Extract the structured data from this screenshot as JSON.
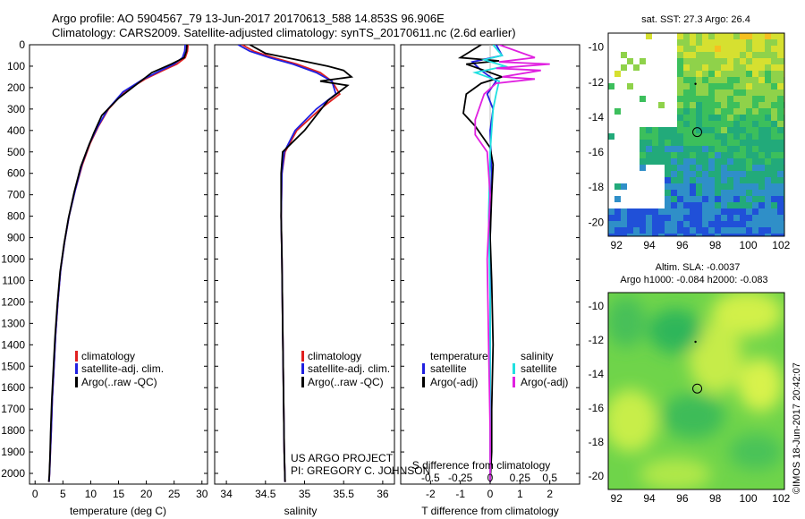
{
  "header": {
    "line1": "Argo profile: AO 5904567_79 13-Jun-2017 20170613_588 14.853S 96.906E",
    "line2": "Climatology: CARS2009. Satellite-adjusted climatology: synTS_20170611.nc (2.6d earlier)"
  },
  "credit": {
    "line1": "US ARGO PROJECT",
    "line2": "PI: GREGORY C. JOHNSON"
  },
  "timestamp": "©IMOS 18-Jun-2017 20:42:07",
  "colors": {
    "climatology": "#e02020",
    "satellite": "#2020e0",
    "argo": "#000000",
    "sat_salinity": "#20e0e0",
    "argo_salinity": "#e020e0"
  },
  "chart_data": [
    {
      "type": "line",
      "id": "temperature",
      "xlabel": "temperature (deg C)",
      "ylabel": "",
      "xlim": [
        -1,
        31
      ],
      "ylim": [
        2050,
        0
      ],
      "xticks": [
        "0",
        "5",
        "10",
        "15",
        "20",
        "25",
        "30"
      ],
      "xtick_values": [
        0,
        5,
        10,
        15,
        20,
        25,
        30
      ],
      "yticks": [
        "0",
        "100",
        "200",
        "300",
        "400",
        "500",
        "600",
        "700",
        "800",
        "900",
        "1000",
        "1100",
        "1200",
        "1300",
        "1400",
        "1500",
        "1600",
        "1700",
        "1800",
        "1900",
        "2000"
      ],
      "ytick_values": [
        0,
        100,
        200,
        300,
        400,
        500,
        600,
        700,
        800,
        900,
        1000,
        1100,
        1200,
        1300,
        1400,
        1500,
        1600,
        1700,
        1800,
        1900,
        2000
      ],
      "legend": [
        "climatology",
        "satellite-adj. clim.",
        "Argo(..raw -QC)"
      ],
      "series": [
        {
          "name": "climatology",
          "color": "#e02020",
          "x": [
            27.5,
            27.4,
            27.0,
            25.5,
            23.0,
            19.8,
            16.0,
            13.2,
            11.4,
            9.9,
            8.5,
            7.2,
            6.1,
            5.3,
            4.6,
            4.1,
            3.7,
            3.4,
            3.1,
            2.9,
            2.75,
            2.6,
            2.5
          ],
          "y": [
            0,
            30,
            60,
            90,
            120,
            160,
            220,
            300,
            380,
            460,
            560,
            680,
            800,
            920,
            1050,
            1200,
            1350,
            1500,
            1650,
            1800,
            1900,
            2000,
            2040
          ]
        },
        {
          "name": "satellite",
          "color": "#2020e0",
          "x": [
            27.0,
            26.9,
            26.5,
            25.0,
            22.6,
            19.5,
            15.8,
            13.1,
            11.3,
            9.8,
            8.4,
            7.2,
            6.1,
            5.3,
            4.6,
            4.1,
            3.7,
            3.4,
            3.1,
            2.9,
            2.75,
            2.6,
            2.5
          ],
          "y": [
            0,
            30,
            60,
            90,
            120,
            160,
            220,
            300,
            380,
            460,
            560,
            680,
            800,
            920,
            1050,
            1200,
            1350,
            1500,
            1650,
            1800,
            1900,
            2000,
            2040
          ]
        },
        {
          "name": "argo",
          "color": "#000000",
          "x": [
            27.3,
            27.2,
            26.8,
            24.5,
            21.0,
            18.5,
            15.0,
            12.0,
            10.6,
            9.5,
            8.2,
            7.0,
            6.0,
            5.2,
            4.5,
            4.0,
            3.6,
            3.3,
            3.0,
            2.8,
            2.7,
            2.55,
            2.45
          ],
          "y": [
            0,
            30,
            60,
            90,
            130,
            180,
            250,
            330,
            410,
            480,
            570,
            690,
            810,
            930,
            1060,
            1210,
            1360,
            1510,
            1660,
            1810,
            1910,
            2010,
            2040
          ]
        }
      ]
    },
    {
      "type": "line",
      "id": "salinity",
      "xlabel": "salinity",
      "xlim": [
        33.85,
        36.15
      ],
      "ylim": [
        2050,
        0
      ],
      "xticks": [
        "34",
        "34.5",
        "35",
        "35.5",
        "36"
      ],
      "xtick_values": [
        34,
        34.5,
        35,
        35.5,
        36
      ],
      "legend": [
        "climatology",
        "satellite-adj. clim.",
        "Argo(..raw -QC)"
      ],
      "series": [
        {
          "name": "climatology",
          "color": "#e02020",
          "x": [
            34.2,
            34.35,
            34.6,
            34.9,
            35.2,
            35.35,
            35.45,
            35.2,
            34.9,
            34.75,
            34.71,
            34.7,
            34.71,
            34.72,
            34.73,
            34.74,
            34.75
          ],
          "y": [
            0,
            30,
            60,
            90,
            130,
            170,
            230,
            300,
            400,
            500,
            600,
            800,
            1000,
            1300,
            1600,
            1900,
            2040
          ]
        },
        {
          "name": "satellite",
          "color": "#2020e0",
          "x": [
            34.15,
            34.3,
            34.55,
            34.85,
            35.15,
            35.35,
            35.4,
            35.15,
            34.88,
            34.74,
            34.71,
            34.7,
            34.71,
            34.72,
            34.73,
            34.74,
            34.75
          ],
          "y": [
            0,
            30,
            60,
            90,
            130,
            170,
            230,
            300,
            400,
            500,
            600,
            800,
            1000,
            1300,
            1600,
            1900,
            2040
          ]
        },
        {
          "name": "argo",
          "color": "#000000",
          "x": [
            34.3,
            34.5,
            34.9,
            35.3,
            35.5,
            35.6,
            35.2,
            35.55,
            35.3,
            35.0,
            34.72,
            34.7,
            34.7,
            34.71,
            34.72,
            34.73,
            34.74,
            34.75
          ],
          "y": [
            0,
            40,
            70,
            100,
            120,
            150,
            170,
            190,
            260,
            400,
            500,
            600,
            800,
            1000,
            1300,
            1600,
            1900,
            2040
          ]
        }
      ]
    },
    {
      "type": "line",
      "id": "difference",
      "xlabel": "T difference from climatology",
      "xlabel_top": "S difference from climatology",
      "xlim": [
        -3,
        3
      ],
      "ylim": [
        2050,
        0
      ],
      "xticks": [
        "-2",
        "-1",
        "0",
        "1",
        "2"
      ],
      "xtick_values": [
        -2,
        -1,
        0,
        1,
        2
      ],
      "sticks": [
        "-0.5",
        "-0.25",
        "0",
        "0.25",
        "0.5"
      ],
      "stick_values": [
        -2,
        -1,
        0,
        1,
        2
      ],
      "legend_temperature": [
        "temperature",
        "satellite",
        "Argo(-adj)"
      ],
      "legend_salinity": [
        "salinity",
        "satellite",
        "Argo(-adj)"
      ],
      "series": [
        {
          "name": "temp-satellite",
          "color": "#2020e0",
          "x": [
            0.2,
            0.4,
            -0.6,
            -0.3,
            0.2,
            -0.1,
            0.1,
            0,
            0.05,
            0,
            0,
            0,
            0
          ],
          "y": [
            0,
            50,
            80,
            120,
            170,
            230,
            300,
            400,
            600,
            900,
            1300,
            1700,
            2040
          ]
        },
        {
          "name": "temp-argo",
          "color": "#000000",
          "x": [
            -0.3,
            -1.0,
            0.3,
            -0.8,
            -0.2,
            0.4,
            -0.3,
            -0.8,
            -0.9,
            -0.5,
            -0.3,
            0,
            0.1,
            0.05,
            0,
            0.05,
            0.1,
            0.05,
            0.05,
            0
          ],
          "y": [
            0,
            60,
            75,
            90,
            120,
            150,
            180,
            230,
            320,
            380,
            420,
            480,
            560,
            700,
            900,
            1100,
            1400,
            1700,
            1900,
            2040
          ]
        },
        {
          "name": "sal-satellite",
          "color": "#20e0e0",
          "x": [
            0.1,
            0.4,
            -0.2,
            0.5,
            -0.5,
            0.3,
            0.2,
            0.1,
            0,
            -0.05,
            0,
            0,
            0
          ],
          "y": [
            0,
            50,
            70,
            100,
            130,
            170,
            230,
            300,
            500,
            800,
            1200,
            1600,
            2040
          ]
        },
        {
          "name": "sal-argo",
          "color": "#e020e0",
          "x": [
            0.3,
            1.5,
            0.3,
            2.0,
            0.2,
            1.7,
            0.4,
            1.5,
            0.2,
            -0.2,
            -0.5,
            -0.5,
            -0.1,
            0,
            -0.1,
            -0.05,
            0,
            0
          ],
          "y": [
            0,
            60,
            80,
            90,
            110,
            120,
            150,
            160,
            180,
            230,
            350,
            420,
            500,
            700,
            1000,
            1400,
            1800,
            2040
          ]
        }
      ]
    },
    {
      "type": "heatmap",
      "id": "sst-map",
      "title": "sat. SST: 27.3 Argo: 26.4",
      "xlim": [
        91.5,
        102.2
      ],
      "ylim": [
        -20.8,
        -9.2
      ],
      "xticks": [
        "92",
        "94",
        "96",
        "98",
        "100",
        "102"
      ],
      "xtick_values": [
        92,
        94,
        96,
        98,
        100,
        102
      ],
      "yticks": [
        "-10",
        "-12",
        "-14",
        "-16",
        "-18",
        "-20"
      ],
      "ytick_values": [
        -10,
        -12,
        -14,
        -16,
        -18,
        -20
      ],
      "profile_marker": [
        96.906,
        -14.853
      ],
      "previous_marker": [
        96.8,
        -12.1
      ]
    },
    {
      "type": "heatmap",
      "id": "sla-map",
      "title": "Altim. SLA: -0.0037",
      "subtitle": "Argo h1000: -0.084 h2000: -0.083",
      "xlim": [
        91.5,
        102.2
      ],
      "ylim": [
        -20.8,
        -9.2
      ],
      "xticks": [
        "92",
        "94",
        "96",
        "98",
        "100",
        "102"
      ],
      "xtick_values": [
        92,
        94,
        96,
        98,
        100,
        102
      ],
      "yticks": [
        "-10",
        "-12",
        "-14",
        "-16",
        "-18",
        "-20"
      ],
      "ytick_values": [
        -10,
        -12,
        -14,
        -16,
        -18,
        -20
      ],
      "profile_marker": [
        96.906,
        -14.853
      ],
      "previous_marker": [
        96.8,
        -12.1
      ]
    }
  ]
}
